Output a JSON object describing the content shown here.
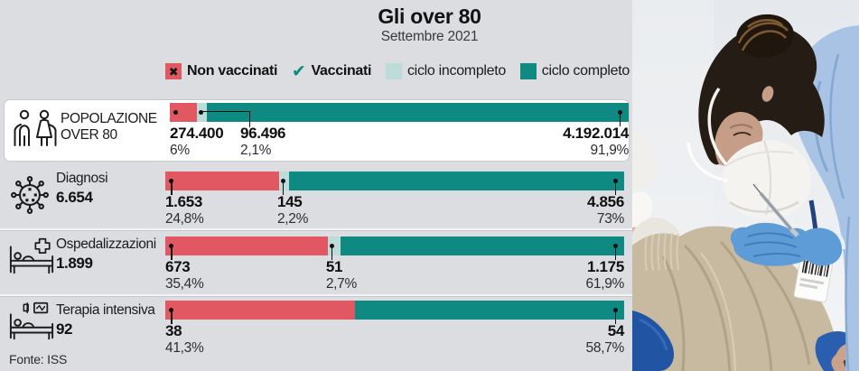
{
  "title": "Gli over 80",
  "subtitle": "Settembre 2021",
  "source": "Fonte: ISS",
  "colors": {
    "non_vaccinati": "#e15862",
    "ciclo_incompleto": "#bcdcd9",
    "ciclo_completo": "#0e8a83",
    "background": "#dcdde0",
    "card": "#ffffff"
  },
  "legend": {
    "items": [
      {
        "id": "non-vaccinati",
        "label": "Non vaccinati",
        "marker": "x-square"
      },
      {
        "id": "vaccinati",
        "label": "Vaccinati",
        "marker": "check-mark"
      },
      {
        "id": "ciclo-incompleto",
        "label": "ciclo incompleto",
        "marker": "light-teal-square"
      },
      {
        "id": "ciclo-completo",
        "label": "ciclo completo",
        "marker": "dark-teal-square"
      }
    ]
  },
  "chart_data": {
    "type": "bar",
    "variant": "horizontal-stacked-100percent",
    "legend_position": "top",
    "rows": [
      {
        "label": "POPOLAZIONE OVER 80",
        "icon": "elderly-couple",
        "segments": [
          {
            "name": "Non vaccinati",
            "value": "274.400",
            "value_num": 274400,
            "pct": "6%",
            "pct_num": 6.0
          },
          {
            "name": "Vaccinati ciclo incompleto",
            "value": "96.496",
            "value_num": 96496,
            "pct": "2,1%",
            "pct_num": 2.1
          },
          {
            "name": "Vaccinati ciclo completo",
            "value": "4.192.014",
            "value_num": 4192014,
            "pct": "91,9%",
            "pct_num": 91.9
          }
        ]
      },
      {
        "label": "Diagnosi",
        "total": "6.654",
        "total_num": 6654,
        "icon": "virus",
        "segments": [
          {
            "name": "Non vaccinati",
            "value": "1.653",
            "value_num": 1653,
            "pct": "24,8%",
            "pct_num": 24.8
          },
          {
            "name": "Vaccinati ciclo incompleto",
            "value": "145",
            "value_num": 145,
            "pct": "2,2%",
            "pct_num": 2.2
          },
          {
            "name": "Vaccinati ciclo completo",
            "value": "4.856",
            "value_num": 4856,
            "pct": "73%",
            "pct_num": 73.0
          }
        ]
      },
      {
        "label": "Ospedalizzazioni",
        "total": "1.899",
        "total_num": 1899,
        "icon": "hospital-bed",
        "segments": [
          {
            "name": "Non vaccinati",
            "value": "673",
            "value_num": 673,
            "pct": "35,4%",
            "pct_num": 35.4
          },
          {
            "name": "Vaccinati ciclo incompleto",
            "value": "51",
            "value_num": 51,
            "pct": "2,7%",
            "pct_num": 2.7
          },
          {
            "name": "Vaccinati ciclo completo",
            "value": "1.175",
            "value_num": 1175,
            "pct": "61,9%",
            "pct_num": 61.9
          }
        ]
      },
      {
        "label": "Terapia intensiva",
        "total": "92",
        "total_num": 92,
        "icon": "icu-bed",
        "segments": [
          {
            "name": "Non vaccinati",
            "value": "38",
            "value_num": 38,
            "pct": "41,3%",
            "pct_num": 41.3
          },
          {
            "name": "Vaccinati ciclo completo",
            "value": "54",
            "value_num": 54,
            "pct": "58,7%",
            "pct_num": 58.7
          }
        ]
      }
    ]
  }
}
